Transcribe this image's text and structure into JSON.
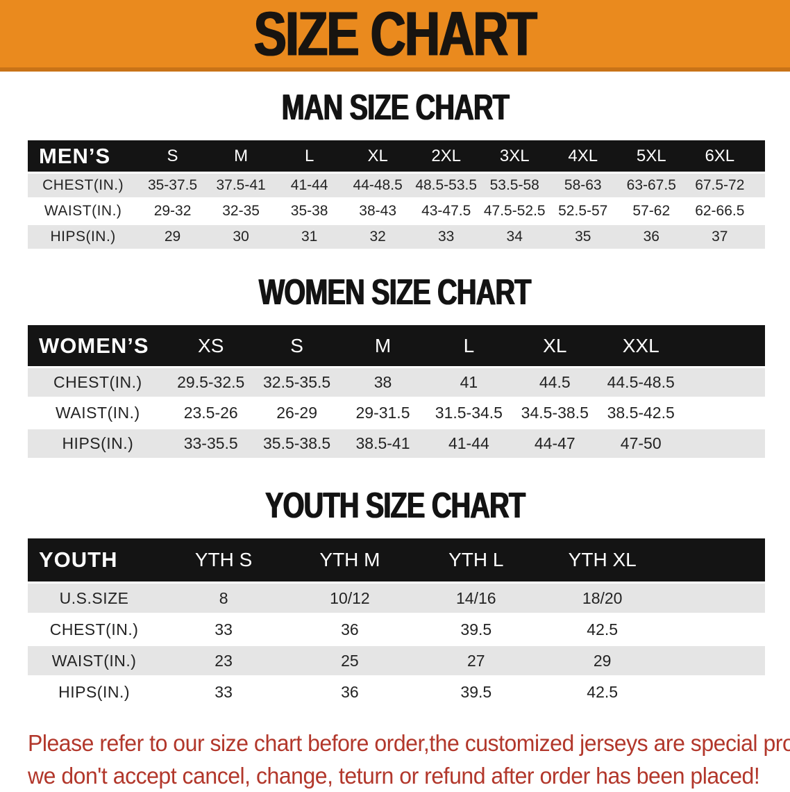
{
  "banner": {
    "title": "SIZE CHART",
    "bg_color": "#EA8A1E",
    "accent_color": "#C97317",
    "title_color": "#181410"
  },
  "sections": [
    {
      "id": "men",
      "heading": "MAN SIZE CHART",
      "table": {
        "label": "MEN’S",
        "columns": [
          "S",
          "M",
          "L",
          "XL",
          "2XL",
          "3XL",
          "4XL",
          "5XL",
          "6XL"
        ],
        "rows": [
          {
            "label": "CHEST(IN.)",
            "shade": true,
            "values": [
              "35-37.5",
              "37.5-41",
              "41-44",
              "44-48.5",
              "48.5-53.5",
              "53.5-58",
              "58-63",
              "63-67.5",
              "67.5-72"
            ]
          },
          {
            "label": "WAIST(IN.)",
            "shade": false,
            "values": [
              "29-32",
              "32-35",
              "35-38",
              "38-43",
              "43-47.5",
              "47.5-52.5",
              "52.5-57",
              "57-62",
              "62-66.5"
            ]
          },
          {
            "label": "HIPS(IN.)",
            "shade": true,
            "values": [
              "29",
              "30",
              "31",
              "32",
              "33",
              "34",
              "35",
              "36",
              "37"
            ]
          }
        ]
      }
    },
    {
      "id": "women",
      "heading": "WOMEN SIZE CHART",
      "table": {
        "label": "WOMEN’S",
        "columns": [
          "XS",
          "S",
          "M",
          "L",
          "XL",
          "XXL"
        ],
        "rows": [
          {
            "label": "CHEST(IN.)",
            "shade": true,
            "values": [
              "29.5-32.5",
              "32.5-35.5",
              "38",
              "41",
              "44.5",
              "44.5-48.5"
            ]
          },
          {
            "label": "WAIST(IN.)",
            "shade": false,
            "values": [
              "23.5-26",
              "26-29",
              "29-31.5",
              "31.5-34.5",
              "34.5-38.5",
              "38.5-42.5"
            ]
          },
          {
            "label": "HIPS(IN.)",
            "shade": true,
            "values": [
              "33-35.5",
              "35.5-38.5",
              "38.5-41",
              "41-44",
              "44-47",
              "47-50"
            ]
          }
        ]
      }
    },
    {
      "id": "youth",
      "heading": "YOUTH SIZE CHART",
      "table": {
        "label": "YOUTH",
        "columns": [
          "YTH S",
          "YTH M",
          "YTH L",
          "YTH XL"
        ],
        "rows": [
          {
            "label": "U.S.SIZE",
            "shade": true,
            "values": [
              "8",
              "10/12",
              "14/16",
              "18/20"
            ]
          },
          {
            "label": "CHEST(IN.)",
            "shade": false,
            "values": [
              "33",
              "36",
              "39.5",
              "42.5"
            ]
          },
          {
            "label": "WAIST(IN.)",
            "shade": true,
            "values": [
              "23",
              "25",
              "27",
              "29"
            ]
          },
          {
            "label": "HIPS(IN.)",
            "shade": false,
            "values": [
              "33",
              "36",
              "39.5",
              "42.5"
            ]
          }
        ]
      }
    }
  ],
  "footer": {
    "color": "#B2372B",
    "lines": [
      "Please refer to our size chart before order,the customized jerseys are special products,",
      "we don't accept cancel, change, teturn or refund after order has been placed!"
    ]
  }
}
